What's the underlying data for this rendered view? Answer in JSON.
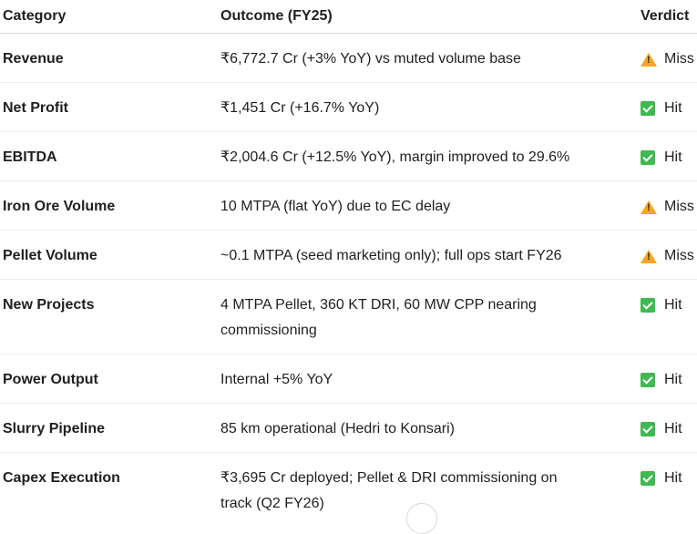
{
  "header": {
    "category": "Category",
    "outcome": "Outcome (FY25)",
    "verdict": "Verdict"
  },
  "rows": [
    {
      "category": "Revenue",
      "outcome": "₹6,772.7 Cr (+3% YoY) vs muted volume base",
      "verdict": "Miss",
      "icon": "warning-icon"
    },
    {
      "category": "Net Profit",
      "outcome": "₹1,451 Cr (+16.7% YoY)",
      "verdict": "Hit",
      "icon": "check-icon"
    },
    {
      "category": "EBITDA",
      "outcome": "₹2,004.6 Cr (+12.5% YoY), margin improved to 29.6%",
      "verdict": "Hit",
      "icon": "check-icon"
    },
    {
      "category": "Iron Ore Volume",
      "outcome": "10 MTPA (flat YoY) due to EC delay",
      "verdict": "Miss",
      "icon": "warning-icon"
    },
    {
      "category": "Pellet Volume",
      "outcome": "~0.1 MTPA (seed marketing only); full ops start FY26",
      "verdict": "Miss",
      "icon": "warning-icon"
    },
    {
      "category": "New Projects",
      "outcome": "4 MTPA Pellet, 360 KT DRI, 60 MW CPP nearing commissioning",
      "verdict": "Hit",
      "icon": "check-icon"
    },
    {
      "category": "Power Output",
      "outcome": "Internal +5% YoY",
      "verdict": "Hit",
      "icon": "check-icon"
    },
    {
      "category": "Slurry Pipeline",
      "outcome": "85 km operational (Hedri to Konsari)",
      "verdict": "Hit",
      "icon": "check-icon"
    },
    {
      "category": "Capex Execution",
      "outcome": "₹3,695 Cr deployed; Pellet & DRI commissioning on track (Q2 FY26)",
      "verdict": "Hit",
      "icon": "check-icon"
    }
  ],
  "colors": {
    "hit": "#3fb950",
    "miss": "#f5a623"
  }
}
